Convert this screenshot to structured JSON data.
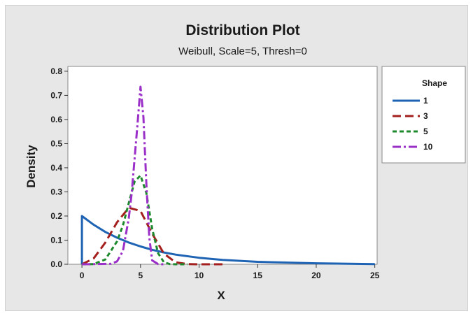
{
  "chart_data": {
    "type": "line",
    "title": "Distribution Plot",
    "subtitle": "Weibull, Scale=5, Thresh=0",
    "xlabel": "X",
    "ylabel": "Density",
    "xlim": [
      -1.2,
      25.2
    ],
    "ylim": [
      0,
      0.82
    ],
    "x_ticks": [
      0,
      5,
      10,
      15,
      20,
      25
    ],
    "x_tick_labels": [
      "0",
      "5",
      "10",
      "15",
      "20",
      "25"
    ],
    "y_ticks": [
      0.0,
      0.1,
      0.2,
      0.3,
      0.4,
      0.5,
      0.6,
      0.7,
      0.8
    ],
    "y_tick_labels": [
      "0.0",
      "0.1",
      "0.2",
      "0.3",
      "0.4",
      "0.5",
      "0.6",
      "0.7",
      "0.8"
    ],
    "grid": false,
    "legend": {
      "title": "Shape",
      "placement": "right"
    },
    "distribution": "Weibull",
    "scale": 5,
    "threshold": 0,
    "series": [
      {
        "name": "1",
        "shape": 1,
        "color": "#1f64b4",
        "dash": "solid",
        "x": [
          0,
          0,
          1,
          2,
          3,
          4,
          5,
          6,
          7,
          8,
          10,
          12,
          15,
          20,
          25
        ],
        "y": [
          0,
          0.2,
          0.164,
          0.134,
          0.11,
          0.09,
          0.074,
          0.06,
          0.049,
          0.04,
          0.027,
          0.018,
          0.01,
          0.004,
          0.001
        ]
      },
      {
        "name": "3",
        "shape": 3,
        "color": "#a3201f",
        "dash": "long-dash",
        "x": [
          0,
          1,
          2,
          3,
          4,
          5,
          6,
          7,
          8,
          9,
          10,
          11,
          12
        ],
        "y": [
          0,
          0.024,
          0.09,
          0.174,
          0.234,
          0.221,
          0.127,
          0.044,
          0.008,
          0.001,
          0,
          0,
          0
        ]
      },
      {
        "name": "5",
        "shape": 5,
        "color": "#1e8a2e",
        "dash": "short-dash",
        "x": [
          0,
          1,
          2,
          3,
          3.5,
          4,
          4.5,
          5,
          5.5,
          6,
          6.5,
          7,
          7.5,
          8,
          9
        ],
        "y": [
          0,
          0.001,
          0.02,
          0.095,
          0.161,
          0.254,
          0.343,
          0.368,
          0.295,
          0.147,
          0.046,
          0.008,
          0.001,
          0,
          0
        ]
      },
      {
        "name": "10",
        "shape": 10,
        "color": "#9b30c8",
        "dash": "dash-dot",
        "x": [
          0,
          2.5,
          3,
          3.5,
          4,
          4.25,
          4.5,
          4.75,
          5,
          5.25,
          5.5,
          5.75,
          6,
          6.5,
          7
        ],
        "y": [
          0,
          0.002,
          0.012,
          0.055,
          0.192,
          0.294,
          0.439,
          0.583,
          0.736,
          0.609,
          0.331,
          0.11,
          0.016,
          0.001,
          0
        ]
      }
    ]
  }
}
